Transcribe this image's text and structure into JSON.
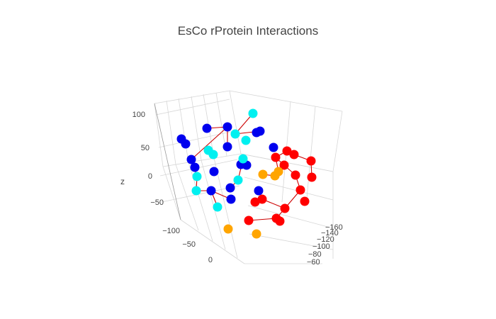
{
  "chart_data": {
    "type": "scatter3d",
    "title": "EsCo rProtein Interactions",
    "axes": {
      "x": {
        "label": "",
        "ticks": [
          "−100",
          "−50",
          "0"
        ]
      },
      "y": {
        "label": "",
        "ticks": [
          "−160",
          "−140",
          "−120",
          "−100",
          "−80",
          "−60"
        ]
      },
      "z": {
        "label": "z",
        "ticks": [
          "100",
          "50",
          "0",
          "−50"
        ]
      }
    },
    "colors": {
      "blue": "#0000ee",
      "cyan": "#00f0f0",
      "red": "#ff0000",
      "orange": "#ffa500",
      "edge": "#cc0000"
    },
    "groups": [
      {
        "color": "blue",
        "points": [
          [
            256,
            196
          ],
          [
            262,
            203
          ],
          [
            292,
            181
          ],
          [
            321,
            179
          ],
          [
            270,
            225
          ],
          [
            275,
            236
          ],
          [
            302,
            242
          ],
          [
            321,
            207
          ],
          [
            340,
            232
          ],
          [
            348,
            233
          ],
          [
            362,
            187
          ],
          [
            367,
            185
          ],
          [
            386,
            208
          ],
          [
            325,
            265
          ],
          [
            298,
            269
          ],
          [
            326,
            281
          ],
          [
            365,
            269
          ]
        ]
      },
      {
        "color": "cyan",
        "points": [
          [
            357,
            160
          ],
          [
            332,
            189
          ],
          [
            347,
            198
          ],
          [
            294,
            212
          ],
          [
            301,
            218
          ],
          [
            343,
            224
          ],
          [
            278,
            249
          ],
          [
            277,
            269
          ],
          [
            336,
            254
          ],
          [
            307,
            292
          ]
        ]
      },
      {
        "color": "red",
        "points": [
          [
            405,
            213
          ],
          [
            415,
            218
          ],
          [
            389,
            222
          ],
          [
            401,
            233
          ],
          [
            439,
            227
          ],
          [
            417,
            247
          ],
          [
            440,
            250
          ],
          [
            424,
            268
          ],
          [
            430,
            284
          ],
          [
            402,
            294
          ],
          [
            370,
            281
          ],
          [
            360,
            285
          ],
          [
            351,
            311
          ],
          [
            390,
            308
          ],
          [
            395,
            312
          ]
        ]
      },
      {
        "color": "orange",
        "points": [
          [
            371,
            246
          ],
          [
            388,
            248
          ],
          [
            393,
            242
          ],
          [
            322,
            323
          ],
          [
            362,
            330
          ]
        ]
      }
    ],
    "edges": [
      [
        [
          292,
          181
        ],
        [
          321,
          179
        ]
      ],
      [
        [
          321,
          179
        ],
        [
          321,
          207
        ]
      ],
      [
        [
          321,
          179
        ],
        [
          270,
          225
        ]
      ],
      [
        [
          270,
          225
        ],
        [
          278,
          249
        ]
      ],
      [
        [
          278,
          249
        ],
        [
          277,
          269
        ]
      ],
      [
        [
          277,
          269
        ],
        [
          298,
          269
        ]
      ],
      [
        [
          298,
          269
        ],
        [
          307,
          292
        ]
      ],
      [
        [
          298,
          269
        ],
        [
          326,
          281
        ]
      ],
      [
        [
          325,
          265
        ],
        [
          336,
          254
        ]
      ],
      [
        [
          336,
          254
        ],
        [
          343,
          224
        ]
      ],
      [
        [
          357,
          160
        ],
        [
          332,
          189
        ]
      ],
      [
        [
          332,
          189
        ],
        [
          367,
          185
        ]
      ],
      [
        [
          340,
          232
        ],
        [
          348,
          233
        ]
      ],
      [
        [
          389,
          222
        ],
        [
          405,
          213
        ]
      ],
      [
        [
          405,
          213
        ],
        [
          415,
          218
        ]
      ],
      [
        [
          415,
          218
        ],
        [
          439,
          227
        ]
      ],
      [
        [
          439,
          227
        ],
        [
          440,
          250
        ]
      ],
      [
        [
          389,
          222
        ],
        [
          401,
          233
        ]
      ],
      [
        [
          401,
          233
        ],
        [
          417,
          247
        ]
      ],
      [
        [
          417,
          247
        ],
        [
          424,
          268
        ]
      ],
      [
        [
          424,
          268
        ],
        [
          402,
          294
        ]
      ],
      [
        [
          402,
          294
        ],
        [
          390,
          308
        ]
      ],
      [
        [
          390,
          308
        ],
        [
          351,
          311
        ]
      ],
      [
        [
          402,
          294
        ],
        [
          370,
          281
        ]
      ],
      [
        [
          370,
          281
        ],
        [
          360,
          285
        ]
      ],
      [
        [
          371,
          246
        ],
        [
          388,
          248
        ]
      ],
      [
        [
          388,
          248
        ],
        [
          393,
          242
        ]
      ],
      [
        [
          393,
          242
        ],
        [
          389,
          222
        ]
      ]
    ]
  }
}
